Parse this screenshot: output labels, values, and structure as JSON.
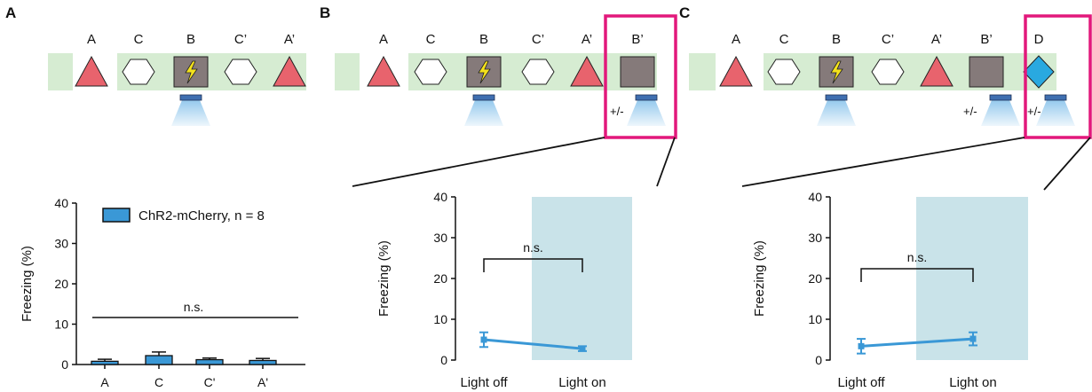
{
  "panels": [
    {
      "letter": "A",
      "sequence": [
        "A",
        "C",
        "B",
        "C’",
        "A’"
      ]
    },
    {
      "letter": "B",
      "sequence": [
        "A",
        "C",
        "B",
        "C’",
        "A’",
        "B’"
      ]
    },
    {
      "letter": "C",
      "sequence": [
        "A",
        "C",
        "B",
        "C’",
        "A’",
        "B’",
        "D"
      ]
    }
  ],
  "plus_minus": "+/-",
  "colors": {
    "context_band": "#d6ecd2",
    "triangle": "#e8636d",
    "shock_box": "#857a7a",
    "diamond": "#29a9e0",
    "highlight": "#e2187b",
    "light_shade": "#c9e3e9",
    "series": "#3a98d6"
  },
  "icons": [
    "lightning-icon",
    "light-source-icon"
  ],
  "chart_data": [
    {
      "type": "bar",
      "panel": "A",
      "categories": [
        "A",
        "C",
        "C'",
        "A'"
      ],
      "series": [
        {
          "name": "ChR2-mCherry, n = 8",
          "values": [
            0.8,
            2.2,
            1.2,
            1.0
          ],
          "errors": [
            0.5,
            0.9,
            0.4,
            0.5
          ]
        }
      ],
      "ylabel": "Freezing (%)",
      "ylim": [
        0,
        40
      ],
      "yticks": [
        0,
        10,
        20,
        30,
        40
      ],
      "significance": "n.s.",
      "legend": "top"
    },
    {
      "type": "line",
      "panel": "B",
      "x": [
        "Light off",
        "Light on"
      ],
      "series": [
        {
          "values": [
            5.0,
            2.8
          ],
          "errors": [
            1.8,
            0.6
          ]
        }
      ],
      "ylabel": "Freezing (%)",
      "ylim": [
        0,
        40
      ],
      "yticks": [
        0,
        10,
        20,
        30,
        40
      ],
      "significance": "n.s.",
      "shaded_condition": "Light on"
    },
    {
      "type": "line",
      "panel": "C",
      "x": [
        "Light off",
        "Light on"
      ],
      "series": [
        {
          "values": [
            3.4,
            5.2
          ],
          "errors": [
            1.8,
            1.6
          ]
        }
      ],
      "ylabel": "Freezing (%)",
      "ylim": [
        0,
        40
      ],
      "yticks": [
        0,
        10,
        20,
        30,
        40
      ],
      "significance": "n.s.",
      "shaded_condition": "Light on"
    }
  ]
}
